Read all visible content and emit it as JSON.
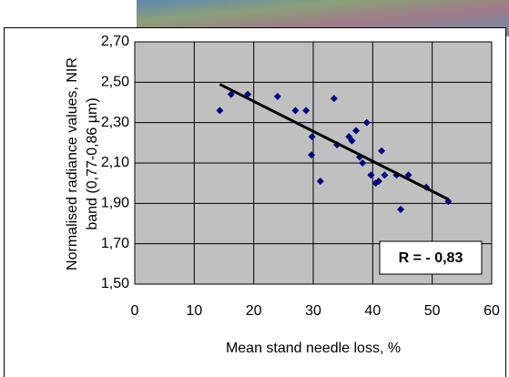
{
  "chart_data": {
    "type": "scatter",
    "ylabel": [
      "Normalised radiance values, NIR",
      "band (0,77-0,86 µm)"
    ],
    "xlabel": "Mean stand needle loss, %",
    "annotation": "R = - 0,83",
    "xlim": [
      0,
      60
    ],
    "xticks": [
      0,
      10,
      20,
      30,
      40,
      50,
      60
    ],
    "ylim": [
      1.5,
      2.7
    ],
    "yticks": [
      {
        "value": 1.5,
        "label": "1,50"
      },
      {
        "value": 1.7,
        "label": "1,70"
      },
      {
        "value": 1.9,
        "label": "1,90"
      },
      {
        "value": 2.1,
        "label": "2,10"
      },
      {
        "value": 2.3,
        "label": "2,30"
      },
      {
        "value": 2.5,
        "label": "2,50"
      },
      {
        "value": 2.7,
        "label": "2,70"
      }
    ],
    "grid": true,
    "series": [
      {
        "color": "#000080",
        "x": [
          14.3,
          16.2,
          19,
          24,
          27,
          28.8,
          29.8,
          29.7,
          31.2,
          33.5,
          34,
          36,
          36.5,
          37.2,
          37.8,
          38.3,
          39,
          39.7,
          40.5,
          41,
          41.5,
          42,
          44,
          44.7,
          46,
          49,
          52.7
        ],
        "values": [
          2.36,
          2.44,
          2.44,
          2.43,
          2.36,
          2.36,
          2.23,
          2.14,
          2.01,
          2.42,
          2.19,
          2.23,
          2.21,
          2.26,
          2.13,
          2.1,
          2.3,
          2.04,
          2.0,
          2.01,
          2.16,
          2.04,
          2.04,
          1.87,
          2.04,
          1.98,
          1.91
        ]
      }
    ],
    "trendline": {
      "color": "#000000",
      "x": [
        14.3,
        52.7
      ],
      "values": [
        2.49,
        1.92
      ]
    }
  }
}
